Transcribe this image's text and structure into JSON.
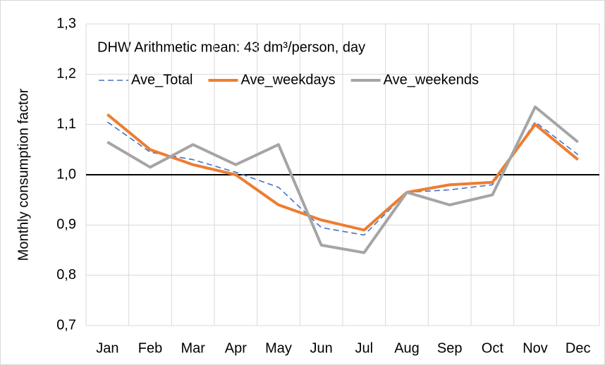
{
  "chart_data": {
    "type": "line",
    "annotation": "DHW Arithmetic mean: 43 dm³/person, day",
    "y_label": "Monthly consumption factor",
    "categories": [
      "Jan",
      "Feb",
      "Mar",
      "Apr",
      "May",
      "Jun",
      "Jul",
      "Aug",
      "Sep",
      "Oct",
      "Nov",
      "Dec"
    ],
    "series": [
      {
        "name": "Ave_Total",
        "color": "#4472c4",
        "style": "dashed",
        "values": [
          1.105,
          1.045,
          1.03,
          1.005,
          0.975,
          0.895,
          0.88,
          0.965,
          0.97,
          0.98,
          1.105,
          1.04
        ]
      },
      {
        "name": "Ave_weekdays",
        "color": "#ed7d31",
        "style": "solid",
        "values": [
          1.12,
          1.05,
          1.02,
          1.0,
          0.94,
          0.91,
          0.89,
          0.965,
          0.98,
          0.985,
          1.1,
          1.03
        ]
      },
      {
        "name": "Ave_weekends",
        "color": "#a5a5a5",
        "style": "solid",
        "values": [
          1.065,
          1.015,
          1.06,
          1.02,
          1.06,
          0.86,
          0.845,
          0.965,
          0.94,
          0.96,
          1.135,
          1.065
        ]
      }
    ],
    "reference_line": 1,
    "ylim": [
      0.7,
      1.3
    ],
    "yticks": [
      {
        "value": 0.7,
        "label": "0,7"
      },
      {
        "value": 0.8,
        "label": "0,8"
      },
      {
        "value": 0.9,
        "label": "0,9"
      },
      {
        "value": 1,
        "label": "1,0"
      },
      {
        "value": 1.1,
        "label": "1,1"
      },
      {
        "value": 1.2,
        "label": "1,2"
      },
      {
        "value": 1.3,
        "label": "1,3"
      }
    ],
    "grid": true,
    "legend": "top-left"
  }
}
